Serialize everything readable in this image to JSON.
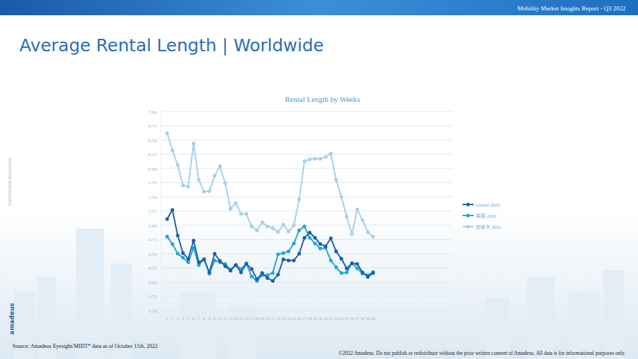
{
  "page": {
    "header": "Mobility Market Insights Report - Q3 2022",
    "title": "Average Rental Length | Worldwide",
    "side_note": "Confidential Document",
    "logo": "amadeus",
    "source": "Source: Amadeus Eyesight/MIDT* data as of October 11th, 2022",
    "footer": "©2022 Amadeus. Do not publish or redistribute without the prior written consent of Amadeus. All data is for informational purposes only."
  },
  "chart_data": {
    "type": "line",
    "title": "Rental Length by Weeks",
    "categories": [
      "1",
      "2",
      "3",
      "4",
      "5",
      "6",
      "7",
      "8",
      "9",
      "10",
      "11",
      "12",
      "13",
      "14",
      "15",
      "16",
      "17",
      "18",
      "19",
      "20",
      "21",
      "22",
      "23",
      "24",
      "25",
      "26",
      "27",
      "28",
      "29",
      "30",
      "31",
      "32",
      "33",
      "34",
      "35",
      "36",
      "37",
      "38",
      "39",
      "40"
    ],
    "series": [
      {
        "name": "Global 2022",
        "color": "#1d5fa9",
        "marker": "circle",
        "values": [
          5.11,
          5.27,
          4.82,
          4.51,
          4.41,
          4.73,
          4.35,
          4.4,
          4.17,
          4.5,
          4.37,
          4.28,
          4.2,
          4.3,
          4.17,
          4.32,
          4.23,
          4.05,
          4.16,
          4.07,
          4.02,
          4.13,
          4.4,
          4.38,
          4.38,
          4.5,
          4.78,
          4.87,
          4.78,
          4.67,
          4.63,
          4.77,
          4.54,
          4.41,
          4.24,
          4.33,
          4.32,
          4.17,
          4.09,
          4.16
        ]
      },
      {
        "name": "英国 2022",
        "color": "#1fa6d6",
        "marker": "circle",
        "values": [
          4.8,
          4.67,
          4.5,
          4.43,
          4.35,
          4.6,
          4.3,
          4.4,
          4.15,
          4.38,
          4.35,
          4.32,
          4.22,
          4.3,
          4.23,
          4.33,
          4.1,
          4.02,
          4.12,
          4.12,
          4.16,
          4.49,
          4.51,
          4.54,
          4.68,
          4.91,
          4.98,
          4.78,
          4.68,
          4.59,
          4.6,
          4.38,
          4.26,
          4.16,
          4.17,
          4.33,
          4.24,
          4.15,
          4.12,
          4.18
        ]
      },
      {
        "name": "加拿大 2022",
        "color": "#a6cfea",
        "marker": "circle",
        "values": [
          6.62,
          6.32,
          6.06,
          5.7,
          5.68,
          6.44,
          5.8,
          5.59,
          5.6,
          5.87,
          6.04,
          5.74,
          5.29,
          5.39,
          5.2,
          5.2,
          4.98,
          4.91,
          5.05,
          4.98,
          4.95,
          4.88,
          5.01,
          4.89,
          5.0,
          5.45,
          6.13,
          6.16,
          6.17,
          6.17,
          6.2,
          6.26,
          5.8,
          5.5,
          5.15,
          4.85,
          5.28,
          5.09,
          4.88,
          4.8
        ]
      }
    ],
    "ylim": [
      3.5,
      7
    ],
    "yticks": [
      {
        "value": 3.5,
        "label": "3.50"
      },
      {
        "value": 3.75,
        "label": "3.75"
      },
      {
        "value": 4,
        "label": "4.00"
      },
      {
        "value": 4.25,
        "label": "4.25"
      },
      {
        "value": 4.5,
        "label": "4.50"
      },
      {
        "value": 4.75,
        "label": "4.75"
      },
      {
        "value": 5,
        "label": "5.00"
      },
      {
        "value": 5.25,
        "label": "5.25"
      },
      {
        "value": 5.5,
        "label": "5.50"
      },
      {
        "value": 5.75,
        "label": "5.75"
      },
      {
        "value": 6,
        "label": "6.00"
      },
      {
        "value": 6.25,
        "label": "6.25"
      },
      {
        "value": 6.5,
        "label": "6.50"
      },
      {
        "value": 6.75,
        "label": "6.75"
      },
      {
        "value": 7,
        "label": "7.00"
      }
    ],
    "grid": true,
    "legend": "right"
  }
}
